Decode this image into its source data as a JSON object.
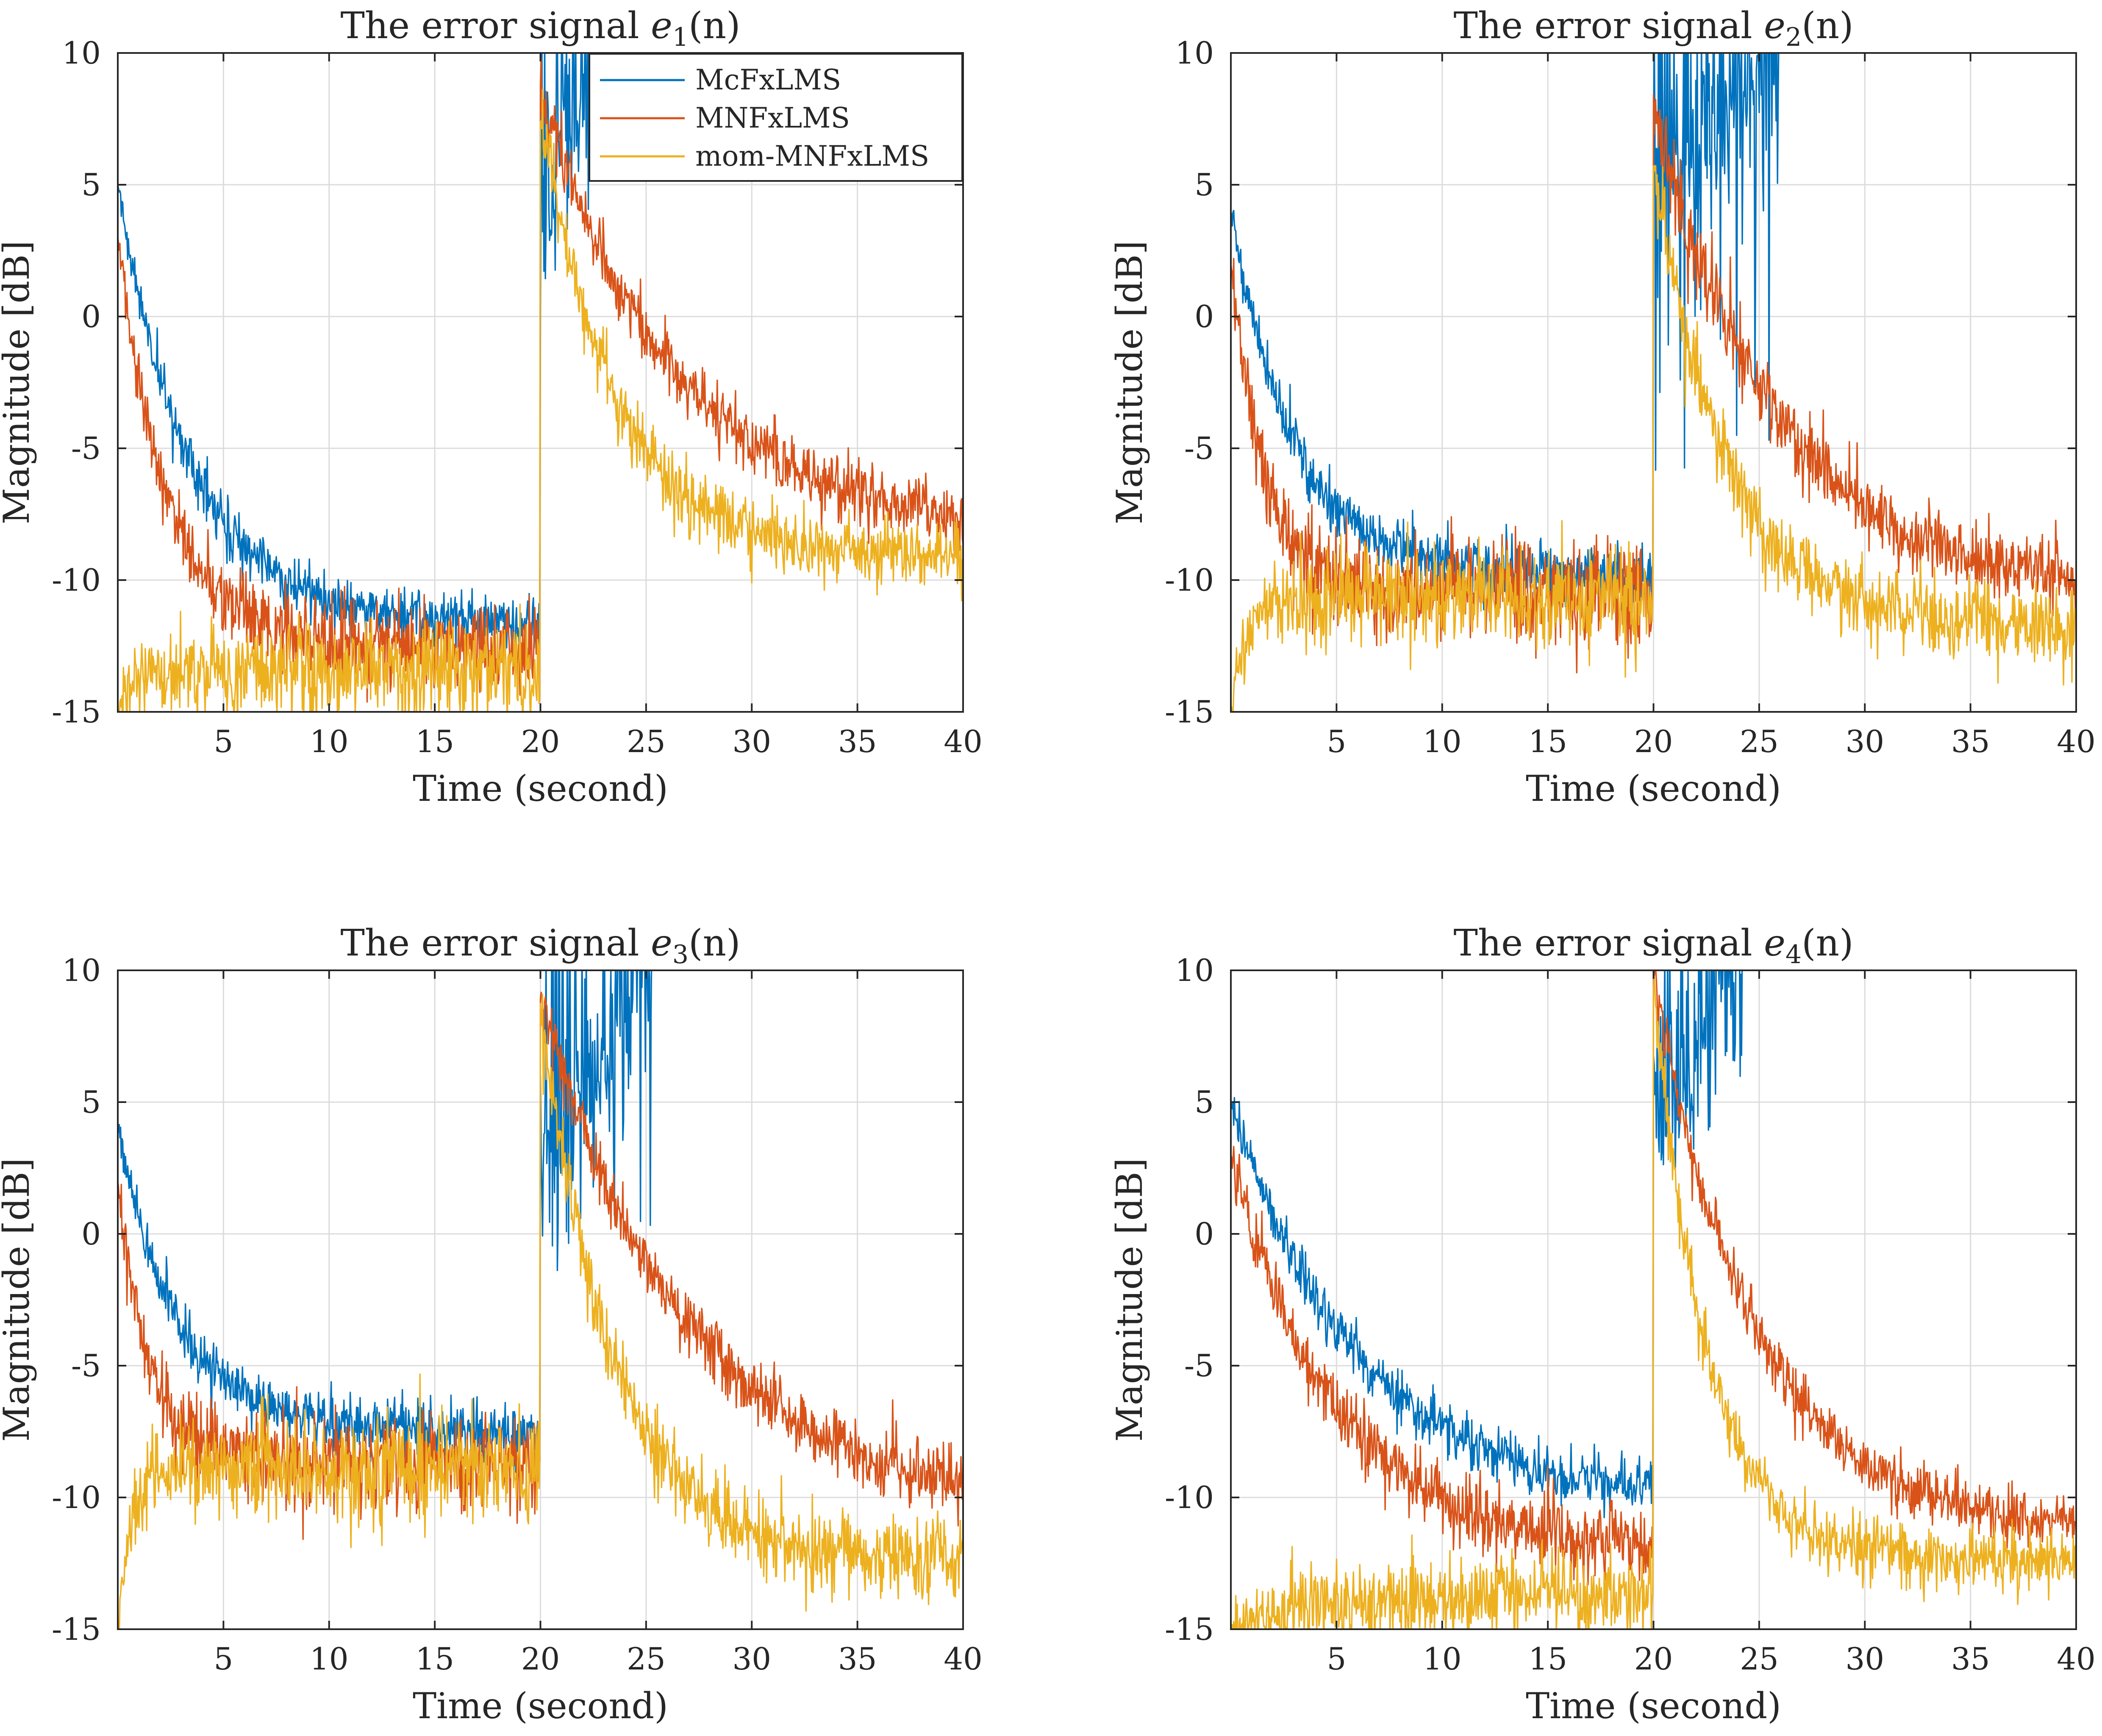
{
  "figure": {
    "background": "#ffffff",
    "axis_color": "#262626",
    "grid_color": "#dcdcdc"
  },
  "legend": {
    "placement": "top-right of first panel",
    "entries": [
      "McFxLMS",
      "MNFxLMS",
      "mom-MNFxLMS"
    ]
  },
  "series_colors": {
    "McFxLMS": "#0072bd",
    "MNFxLMS": "#d95319",
    "mom-MNFxLMS": "#edb120"
  },
  "chart_data": [
    {
      "type": "line",
      "title": "The error signal e1(n)",
      "title_parts": {
        "prefix": "The error signal ",
        "symbol": "e",
        "subscript": "1",
        "suffix": "(n)"
      },
      "xlabel": "Time (second)",
      "ylabel": "Magnitude [dB]",
      "xlim": [
        0,
        40
      ],
      "ylim": [
        -15,
        10
      ],
      "xticks": [
        5,
        10,
        15,
        20,
        25,
        30,
        35,
        40
      ],
      "yticks": [
        -15,
        -10,
        -5,
        0,
        5,
        10
      ],
      "xtick_labels": [
        "5",
        "10",
        "15",
        "20",
        "25",
        "30",
        "35",
        "40"
      ],
      "ytick_labels": [
        "-15",
        "-10",
        "-5",
        "0",
        "5",
        "10"
      ],
      "grid": true,
      "noise_seed": 11,
      "series": [
        {
          "name": "McFxLMS",
          "color": "#0072bd",
          "start": 5.0,
          "phase1_floor": -11.7,
          "phase1_tau": 3.5,
          "noise": 0.55,
          "jump_to": 3.0,
          "diverges": true,
          "diverge_end": 22.8,
          "spike_min": 2.5,
          "spike_max": 11.0
        },
        {
          "name": "MNFxLMS",
          "color": "#d95319",
          "start": 3.0,
          "phase1_floor": -12.5,
          "phase1_tau": 2.3,
          "noise": 0.8,
          "jump_to": 8.5,
          "phase2_floor": -8.4,
          "phase2_tau": 6.5
        },
        {
          "name": "mom-MNFxLMS",
          "color": "#edb120",
          "start": -15.0,
          "phase1_floor": -13.4,
          "phase1_tau": 0.9,
          "noise": 0.9,
          "jump_to": 8.0,
          "phase2_floor": -9.0,
          "phase2_tau": 3.4
        }
      ]
    },
    {
      "type": "line",
      "title": "The error signal e2(n)",
      "title_parts": {
        "prefix": "The error signal ",
        "symbol": "e",
        "subscript": "2",
        "suffix": "(n)"
      },
      "xlabel": "Time (second)",
      "ylabel": "Magnitude [dB]",
      "xlim": [
        0,
        40
      ],
      "ylim": [
        -15,
        10
      ],
      "xticks": [
        5,
        10,
        15,
        20,
        25,
        30,
        35,
        40
      ],
      "yticks": [
        -15,
        -10,
        -5,
        0,
        5,
        10
      ],
      "xtick_labels": [
        "5",
        "10",
        "15",
        "20",
        "25",
        "30",
        "35",
        "40"
      ],
      "ytick_labels": [
        "-15",
        "-10",
        "-5",
        "0",
        "5",
        "10"
      ],
      "grid": true,
      "noise_seed": 23,
      "series": [
        {
          "name": "McFxLMS",
          "color": "#0072bd",
          "start": 4.0,
          "phase1_floor": -9.8,
          "phase1_tau": 3.0,
          "noise": 0.55,
          "jump_to": 4.0,
          "diverges": true,
          "diverge_end": 26.0,
          "spike_min": -6.0,
          "spike_max": 11.0
        },
        {
          "name": "MNFxLMS",
          "color": "#d95319",
          "start": 2.0,
          "phase1_floor": -10.4,
          "phase1_tau": 1.6,
          "noise": 1.0,
          "jump_to": 7.7,
          "phase2_floor": -10.7,
          "phase2_tau": 6.0
        },
        {
          "name": "mom-MNFxLMS",
          "color": "#edb120",
          "start": -15.0,
          "phase1_floor": -10.6,
          "phase1_tau": 0.8,
          "noise": 1.0,
          "jump_to": 6.0,
          "phase2_floor": -11.7,
          "phase2_tau": 3.3
        }
      ]
    },
    {
      "type": "line",
      "title": "The error signal e3(n)",
      "title_parts": {
        "prefix": "The error signal ",
        "symbol": "e",
        "subscript": "3",
        "suffix": "(n)"
      },
      "xlabel": "Time (second)",
      "ylabel": "Magnitude [dB]",
      "xlim": [
        0,
        40
      ],
      "ylim": [
        -15,
        10
      ],
      "xticks": [
        5,
        10,
        15,
        20,
        25,
        30,
        35,
        40
      ],
      "yticks": [
        -15,
        -10,
        -5,
        0,
        5,
        10
      ],
      "xtick_labels": [
        "5",
        "10",
        "15",
        "20",
        "25",
        "30",
        "35",
        "40"
      ],
      "ytick_labels": [
        "-15",
        "-10",
        "-5",
        "0",
        "5",
        "10"
      ],
      "grid": true,
      "noise_seed": 37,
      "series": [
        {
          "name": "McFxLMS",
          "color": "#0072bd",
          "start": 4.0,
          "phase1_floor": -7.5,
          "phase1_tau": 2.8,
          "noise": 0.55,
          "jump_to": 2.0,
          "diverges": true,
          "diverge_end": 25.3,
          "spike_min": 0.0,
          "spike_max": 11.0
        },
        {
          "name": "MNFxLMS",
          "color": "#d95319",
          "start": 2.0,
          "phase1_floor": -8.6,
          "phase1_tau": 1.4,
          "noise": 0.9,
          "jump_to": 9.0,
          "phase2_floor": -10.6,
          "phase2_tau": 7.0
        },
        {
          "name": "mom-MNFxLMS",
          "color": "#edb120",
          "start": -15.0,
          "phase1_floor": -8.9,
          "phase1_tau": 0.6,
          "noise": 1.0,
          "jump_to": 8.5,
          "phase2_floor": -12.4,
          "phase2_tau": 3.4
        }
      ]
    },
    {
      "type": "line",
      "title": "The error signal e4(n)",
      "title_parts": {
        "prefix": "The error signal ",
        "symbol": "e",
        "subscript": "4",
        "suffix": "(n)"
      },
      "xlabel": "Time (second)",
      "ylabel": "Magnitude [dB]",
      "xlim": [
        0,
        40
      ],
      "ylim": [
        -15,
        10
      ],
      "xticks": [
        5,
        10,
        15,
        20,
        25,
        30,
        35,
        40
      ],
      "yticks": [
        -15,
        -10,
        -5,
        0,
        5,
        10
      ],
      "xtick_labels": [
        "5",
        "10",
        "15",
        "20",
        "25",
        "30",
        "35",
        "40"
      ],
      "ytick_labels": [
        "-15",
        "-10",
        "-5",
        "0",
        "5",
        "10"
      ],
      "grid": true,
      "noise_seed": 53,
      "series": [
        {
          "name": "McFxLMS",
          "color": "#0072bd",
          "start": 5.0,
          "phase1_floor": -10.2,
          "phase1_tau": 6.0,
          "noise": 0.5,
          "jump_to": 4.0,
          "diverges": true,
          "diverge_end": 24.2,
          "spike_min": 2.5,
          "spike_max": 11.0
        },
        {
          "name": "MNFxLMS",
          "color": "#d95319",
          "start": 3.0,
          "phase1_floor": -12.1,
          "phase1_tau": 5.0,
          "noise": 0.7,
          "jump_to": 9.8,
          "phase2_floor": -11.3,
          "phase2_tau": 4.8
        },
        {
          "name": "mom-MNFxLMS",
          "color": "#edb120",
          "start": -15.0,
          "phase1_floor": -13.7,
          "phase1_tau": 3.5,
          "noise": 0.8,
          "jump_to": 9.5,
          "phase2_floor": -12.4,
          "phase2_tau": 2.5
        }
      ]
    }
  ]
}
